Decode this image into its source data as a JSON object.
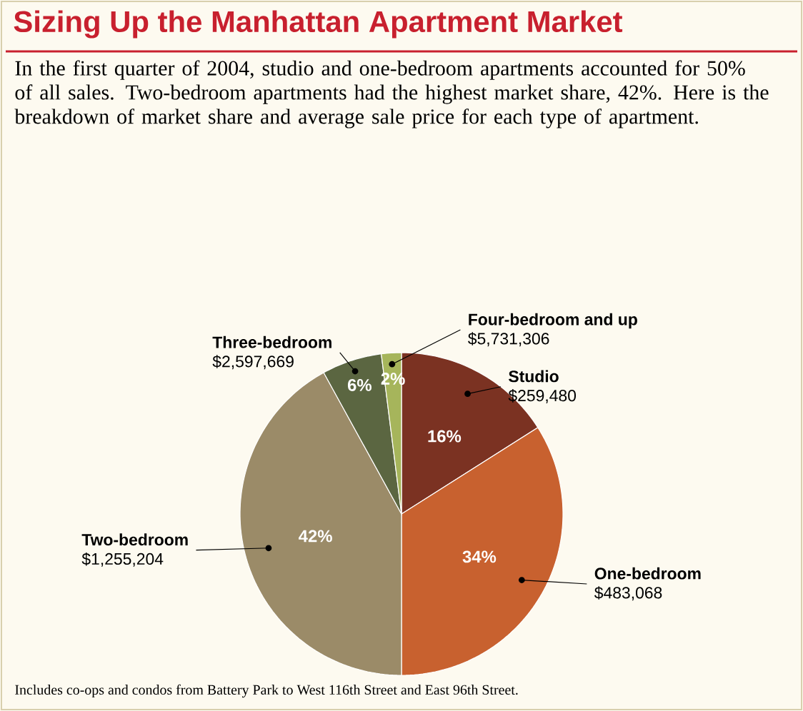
{
  "chart_data": {
    "type": "pie",
    "title": "Sizing Up the Manhattan Apartment Market",
    "subtitle": "In the first quarter of 2004, studio and one-bedroom apartments accounted for 50% of all sales. Two-bedroom apartments had the highest market share, 42%. Here is the breakdown of market share and average sale price for each type of apartment.",
    "categories": [
      "Studio",
      "One-bedroom",
      "Two-bedroom",
      "Three-bedroom",
      "Four-bedroom and up"
    ],
    "values": [
      16,
      34,
      42,
      6,
      2
    ],
    "colors": [
      "#7b3222",
      "#c8612f",
      "#9b8b68",
      "#5b6641",
      "#a6b55b"
    ],
    "value_labels": [
      "16%",
      "34%",
      "42%",
      "6%",
      "2%"
    ],
    "annotations": [
      {
        "text": "$259,480",
        "x": "Studio"
      },
      {
        "text": "$483,068",
        "x": "One-bedroom"
      },
      {
        "text": "$1,255,204",
        "x": "Two-bedroom"
      },
      {
        "text": "$2,597,669",
        "x": "Three-bedroom"
      },
      {
        "text": "$5,731,306",
        "x": "Four-bedroom and up"
      },
      "Includes co-ops and condos from Battery Park to West 116th Street and East 96th Street."
    ]
  }
}
